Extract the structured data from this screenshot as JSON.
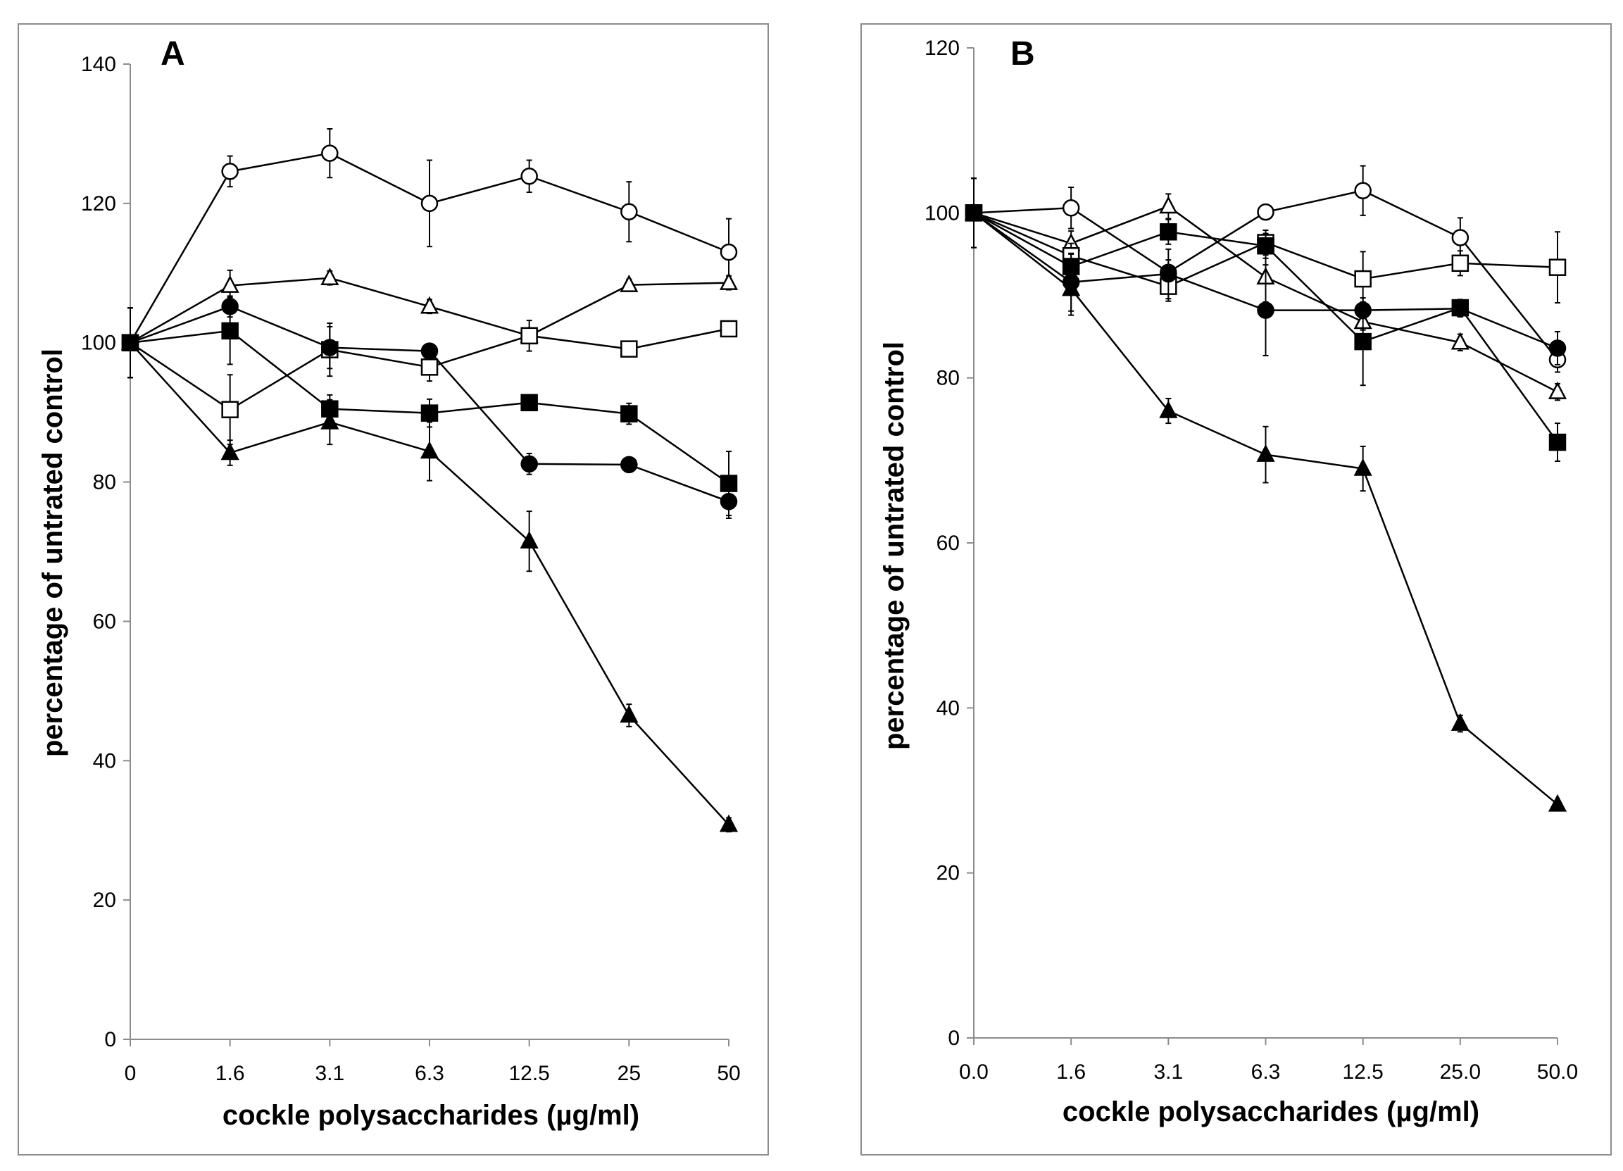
{
  "chart_data": [
    {
      "type": "line",
      "panel_label": "A",
      "xlabel": "cockle polysaccharides (µg/ml)",
      "ylabel": "percentage of untrated control",
      "categories": [
        "0",
        "1.6",
        "3.1",
        "6.3",
        "12.5",
        "25",
        "50"
      ],
      "yticks": [
        "0",
        "20",
        "40",
        "60",
        "80",
        "100",
        "120",
        "140"
      ],
      "ylim": [
        0,
        140
      ],
      "grid": false,
      "legend": "none",
      "series": [
        {
          "marker": "circle-open",
          "values": [
            100,
            124.6,
            127.2,
            120.0,
            123.9,
            118.8,
            113.0
          ],
          "errors": [
            5.0,
            2.2,
            3.5,
            6.2,
            2.3,
            4.3,
            4.8
          ]
        },
        {
          "marker": "triangle-open",
          "values": [
            100,
            108.2,
            109.3,
            105.2,
            101.0,
            108.3,
            108.6
          ],
          "errors": [
            5.0,
            2.2,
            1.0,
            1.0,
            1.0,
            0.8,
            1.0
          ]
        },
        {
          "marker": "square-open",
          "values": [
            100,
            90.4,
            99.0,
            96.5,
            101.0,
            99.1,
            102.0
          ],
          "errors": [
            5.0,
            5.0,
            3.8,
            2.0,
            2.2,
            1.0,
            1.0
          ]
        },
        {
          "marker": "circle-filled",
          "values": [
            100,
            105.2,
            99.3,
            98.8,
            82.6,
            82.5,
            77.2
          ],
          "errors": [
            5.0,
            1.5,
            3.0,
            1.0,
            1.5,
            0.5,
            2.4
          ]
        },
        {
          "marker": "square-filled",
          "values": [
            100,
            101.7,
            90.5,
            89.9,
            91.4,
            89.8,
            79.8
          ],
          "errors": [
            5.0,
            4.8,
            2.0,
            2.0,
            1.0,
            1.5,
            4.6
          ]
        },
        {
          "marker": "triangle-filled",
          "values": [
            100,
            84.2,
            88.6,
            84.4,
            71.5,
            46.5,
            30.8
          ],
          "errors": [
            5.0,
            1.8,
            3.2,
            4.2,
            4.3,
            1.6,
            1.0
          ]
        }
      ]
    },
    {
      "type": "line",
      "panel_label": "B",
      "xlabel": "cockle polysaccharides (µg/ml)",
      "ylabel": "percentage of untrated control",
      "categories": [
        "0.0",
        "1.6",
        "3.1",
        "6.3",
        "12.5",
        "25.0",
        "50.0"
      ],
      "yticks": [
        "0",
        "20",
        "40",
        "60",
        "80",
        "100",
        "120"
      ],
      "ylim": [
        0,
        120
      ],
      "grid": false,
      "legend": "none",
      "series": [
        {
          "marker": "circle-open",
          "values": [
            100,
            100.6,
            92.8,
            100.1,
            102.7,
            97.0,
            82.2
          ],
          "errors": [
            4.2,
            2.5,
            1.5,
            0.5,
            3.0,
            2.4,
            1.5
          ]
        },
        {
          "marker": "triangle-open",
          "values": [
            100,
            96.3,
            100.8,
            92.2,
            86.8,
            84.3,
            78.3
          ],
          "errors": [
            4.2,
            1.5,
            1.5,
            3.0,
            1.0,
            1.0,
            1.0
          ]
        },
        {
          "marker": "square-open",
          "values": [
            100,
            94.8,
            91.1,
            96.4,
            92.0,
            93.9,
            93.4
          ],
          "errors": [
            4.2,
            1.5,
            1.8,
            1.5,
            3.3,
            1.5,
            4.3
          ]
        },
        {
          "marker": "circle-filled",
          "values": [
            100,
            91.6,
            92.6,
            88.2,
            88.2,
            88.4,
            83.6
          ],
          "errors": [
            4.2,
            3.5,
            3.0,
            5.5,
            1.0,
            1.0,
            2.0
          ]
        },
        {
          "marker": "square-filled",
          "values": [
            100,
            93.5,
            97.7,
            96.0,
            84.4,
            88.5,
            72.2
          ],
          "errors": [
            4.2,
            1.5,
            1.5,
            1.5,
            5.3,
            1.0,
            2.3
          ]
        },
        {
          "marker": "triangle-filled",
          "values": [
            100,
            90.8,
            76.0,
            70.7,
            69.0,
            38.1,
            28.3
          ],
          "errors": [
            4.2,
            3.2,
            1.5,
            3.4,
            2.7,
            1.0,
            0.5
          ]
        }
      ]
    }
  ]
}
